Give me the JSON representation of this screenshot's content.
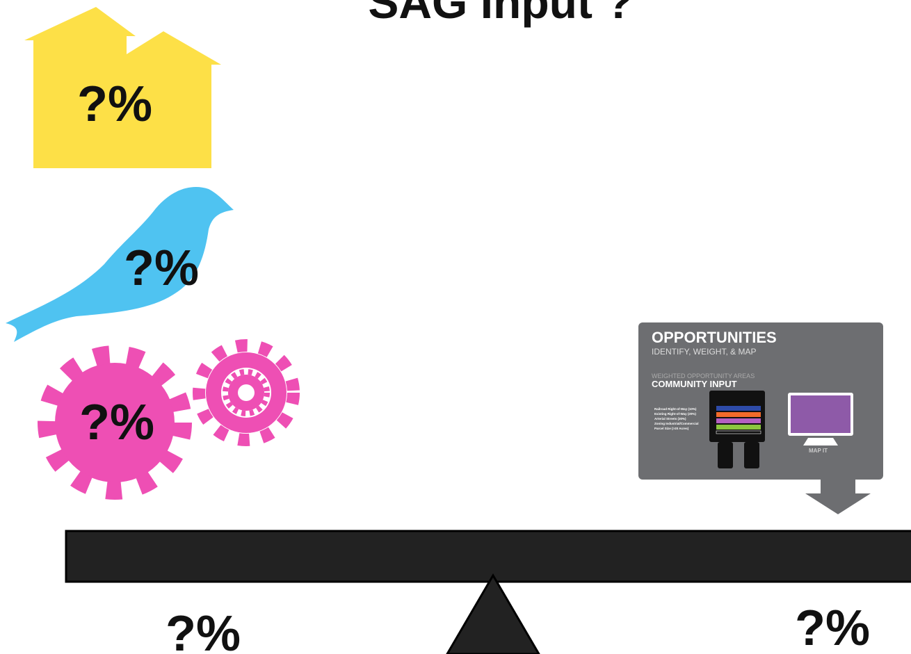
{
  "title": "SAG Input ?",
  "labels": [
    "?%",
    "?%",
    "?%",
    "?%",
    "?%"
  ],
  "panel": {
    "heading": "OPPORTUNITIES",
    "subheading": "IDENTIFY, WEIGHT, & MAP",
    "section_caption": "WEIGHTED OPPORTUNITY AREAS",
    "section_title": "COMMUNITY INPUT",
    "layers": [
      "Railroad Right-of-Way (10%)",
      "Existing Right-of-Way (20%)",
      "Arterial Streets (30%)",
      "Zoning Industrial/Commercial",
      "Parcel Size (>20 Acres)"
    ],
    "map_label": "MAP IT"
  }
}
